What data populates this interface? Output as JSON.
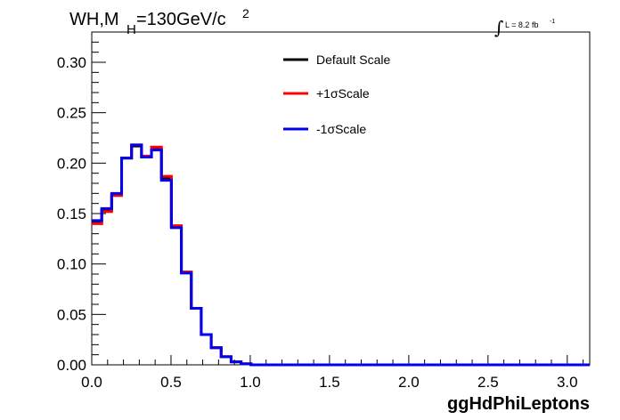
{
  "chart_data": {
    "type": "line",
    "title_main": "WH,M",
    "title_sub": "H",
    "title_rest": "=130GeV/c",
    "title_sup": "2",
    "lumi_integral": "∫",
    "lumi_text": "L = 8.2 fb",
    "lumi_sup": "-1",
    "xlabel": "ggHdPhiLeptons",
    "ylabel": "",
    "xlim": [
      0,
      3.1416
    ],
    "ylim": [
      0,
      0.33
    ],
    "x_ticks": [
      "0.0",
      "0.5",
      "1.0",
      "1.5",
      "2.0",
      "2.5",
      "3.0"
    ],
    "y_ticks": [
      "0.00",
      "0.05",
      "0.10",
      "0.15",
      "0.20",
      "0.25",
      "0.30"
    ],
    "x_tick_values": [
      0,
      0.5,
      1.0,
      1.5,
      2.0,
      2.5,
      3.0
    ],
    "y_tick_values": [
      0,
      0.05,
      0.1,
      0.15,
      0.2,
      0.25,
      0.3
    ],
    "bin_width": 0.0628,
    "legend_position": "top-center",
    "series": [
      {
        "name": "Default Scale",
        "color": "#000000",
        "values": [
          0.141,
          0.153,
          0.168,
          0.205,
          0.217,
          0.206,
          0.214,
          0.185,
          0.137,
          0.092,
          0.056,
          0.03,
          0.017,
          0.008,
          0.003,
          0.001,
          0,
          0,
          0,
          0,
          0,
          0,
          0,
          0,
          0,
          0,
          0,
          0,
          0,
          0,
          0,
          0,
          0,
          0,
          0,
          0,
          0,
          0,
          0,
          0,
          0,
          0,
          0,
          0,
          0,
          0,
          0,
          0,
          0,
          0
        ]
      },
      {
        "name": "+1σScale",
        "color": "#ff0000",
        "values": [
          0.14,
          0.152,
          0.168,
          0.205,
          0.218,
          0.207,
          0.216,
          0.187,
          0.138,
          0.092,
          0.056,
          0.03,
          0.017,
          0.008,
          0.003,
          0.001,
          0,
          0,
          0,
          0,
          0,
          0,
          0,
          0,
          0,
          0,
          0,
          0,
          0,
          0,
          0,
          0,
          0,
          0,
          0,
          0,
          0,
          0,
          0,
          0,
          0,
          0,
          0,
          0,
          0,
          0,
          0,
          0,
          0,
          0
        ]
      },
      {
        "name": "-1σScale",
        "color": "#0000ee",
        "values": [
          0.143,
          0.155,
          0.17,
          0.205,
          0.218,
          0.206,
          0.213,
          0.183,
          0.136,
          0.091,
          0.056,
          0.03,
          0.017,
          0.008,
          0.003,
          0.001,
          0,
          0,
          0,
          0,
          0,
          0,
          0,
          0,
          0,
          0,
          0,
          0,
          0,
          0,
          0,
          0,
          0,
          0,
          0,
          0,
          0,
          0,
          0,
          0,
          0,
          0,
          0,
          0,
          0,
          0,
          0,
          0,
          0,
          0
        ]
      }
    ]
  }
}
